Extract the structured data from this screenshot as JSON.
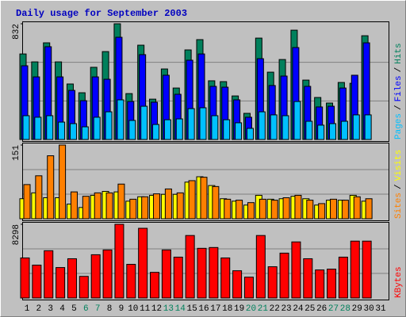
{
  "chart_data": {
    "type": "bar",
    "title": "Daily usage for September 2003",
    "separator": "/",
    "categories": [
      "1",
      "2",
      "3",
      "4",
      "5",
      "6",
      "7",
      "8",
      "9",
      "10",
      "11",
      "12",
      "13",
      "14",
      "15",
      "16",
      "17",
      "18",
      "19",
      "20",
      "21",
      "22",
      "23",
      "24",
      "25",
      "26",
      "27",
      "28",
      "29",
      "30",
      "31"
    ],
    "category_colors": [
      "#000000",
      "#000000",
      "#000000",
      "#000000",
      "#000000",
      "#00805c",
      "#00805c",
      "#000000",
      "#000000",
      "#000000",
      "#000000",
      "#000000",
      "#00805c",
      "#00805c",
      "#000000",
      "#000000",
      "#000000",
      "#000000",
      "#000000",
      "#00805c",
      "#00805c",
      "#000000",
      "#000000",
      "#000000",
      "#000000",
      "#000000",
      "#00805c",
      "#00805c",
      "#000000",
      "#000000",
      "#000000"
    ],
    "grid_divisions": 3,
    "panels": [
      {
        "ylim": [
          0,
          832
        ],
        "yticks": [
          832
        ],
        "series": [
          {
            "name": "Pages",
            "color": "#00c0ff",
            "values": [
              171,
              160,
              171,
              125,
              114,
              91,
              160,
              199,
              285,
              137,
              239,
              108,
              142,
              148,
              222,
              228,
              171,
              142,
              120,
              80,
              199,
              177,
              171,
              273,
              131,
              103,
              114,
              131,
              177,
              177,
              0
            ]
          },
          {
            "name": "Files",
            "color": "#0000ff",
            "values": [
              530,
              450,
              667,
              450,
              353,
              279,
              450,
              433,
              735,
              273,
              610,
              268,
              462,
              325,
              570,
              615,
              382,
              376,
              285,
              160,
              581,
              388,
              456,
              661,
              382,
              234,
              239,
              370,
              462,
              695,
              0
            ]
          },
          {
            "name": "Hits",
            "color": "#00805c",
            "values": [
              615,
              558,
              695,
              558,
              399,
              336,
              519,
              632,
              832,
              330,
              678,
              290,
              507,
              370,
              644,
              718,
              422,
              416,
              313,
              188,
              729,
              484,
              575,
              786,
              427,
              302,
              262,
              410,
              404,
              746,
              0
            ]
          }
        ]
      },
      {
        "ylim": [
          0,
          151
        ],
        "yticks": [
          151
        ],
        "series": [
          {
            "name": "Sites",
            "color": "#ff8000",
            "values": [
              70,
              88,
              129,
              151,
              55,
              46,
              53,
              53,
              71,
              40,
              45,
              51,
              61,
              53,
              78,
              85,
              66,
              40,
              38,
              33,
              40,
              38,
              43,
              48,
              38,
              31,
              40,
              38,
              45,
              41,
              0
            ]
          },
          {
            "name": "Visits",
            "color": "#ffff00",
            "values": [
              41,
              53,
              43,
              43,
              30,
              23,
              48,
              56,
              55,
              36,
              45,
              48,
              50,
              50,
              75,
              86,
              68,
              41,
              36,
              28,
              48,
              40,
              41,
              46,
              41,
              28,
              38,
              38,
              48,
              36,
              0
            ]
          }
        ]
      },
      {
        "ylim": [
          0,
          8298
        ],
        "yticks": [
          8298
        ],
        "series": [
          {
            "name": "KBytes",
            "color": "#ff0000",
            "values": [
              4510,
              3699,
              5323,
              3428,
              4420,
              2435,
              4871,
              5412,
              8298,
              3789,
              7847,
              2886,
              5412,
              4600,
              7035,
              5592,
              5683,
              4510,
              3067,
              2345,
              7035,
              3518,
              5051,
              6314,
              4420,
              3157,
              3247,
              4600,
              6404,
              6404,
              0
            ]
          }
        ]
      }
    ]
  }
}
